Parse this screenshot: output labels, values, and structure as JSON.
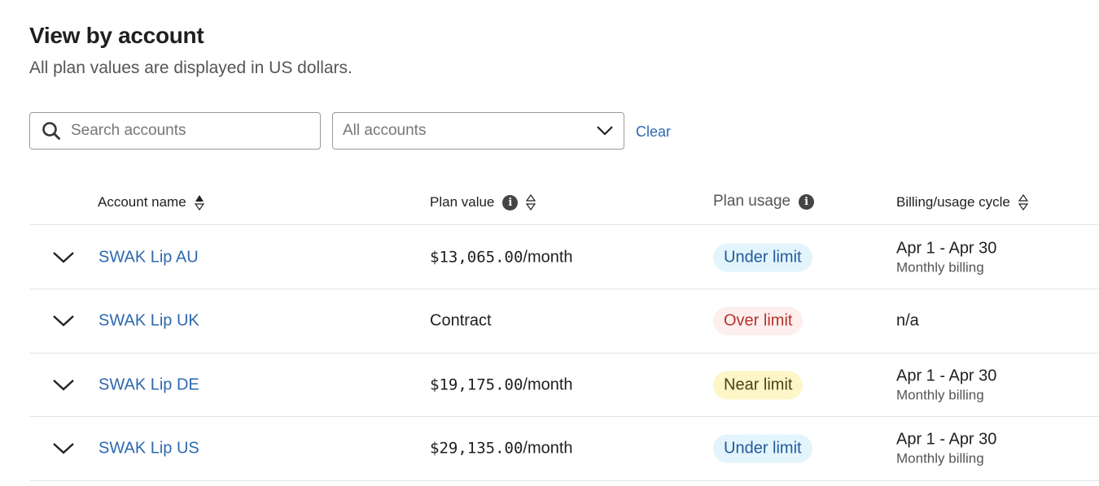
{
  "header": {
    "title": "View by account",
    "subtitle": "All plan values are displayed in US dollars."
  },
  "filters": {
    "search_placeholder": "Search accounts",
    "account_select": "All accounts",
    "clear_label": "Clear"
  },
  "columns": {
    "name": "Account name",
    "plan_value": "Plan value",
    "plan_usage": "Plan usage",
    "cycle": "Billing/usage cycle"
  },
  "colors": {
    "link": "#2e68b0",
    "under": "#e3f4fc",
    "over": "#fcefed",
    "near": "#fdf6c7"
  },
  "rows": [
    {
      "name": "SWAK Lip AU",
      "amount": "$13,065.00",
      "unit": "/month",
      "usage": "Under limit",
      "status": "under",
      "dates": "Apr 1 - Apr 30",
      "billing": "Monthly billing"
    },
    {
      "name": "SWAK Lip UK",
      "amount": "",
      "unit": "Contract",
      "usage": "Over limit",
      "status": "over",
      "dates": "n/a",
      "billing": ""
    },
    {
      "name": "SWAK Lip DE",
      "amount": "$19,175.00",
      "unit": "/month",
      "usage": "Near limit",
      "status": "near",
      "dates": "Apr 1 - Apr 30",
      "billing": "Monthly billing"
    },
    {
      "name": "SWAK Lip US",
      "amount": "$29,135.00",
      "unit": "/month",
      "usage": "Under limit",
      "status": "under",
      "dates": "Apr 1 - Apr 30",
      "billing": "Monthly billing"
    }
  ]
}
